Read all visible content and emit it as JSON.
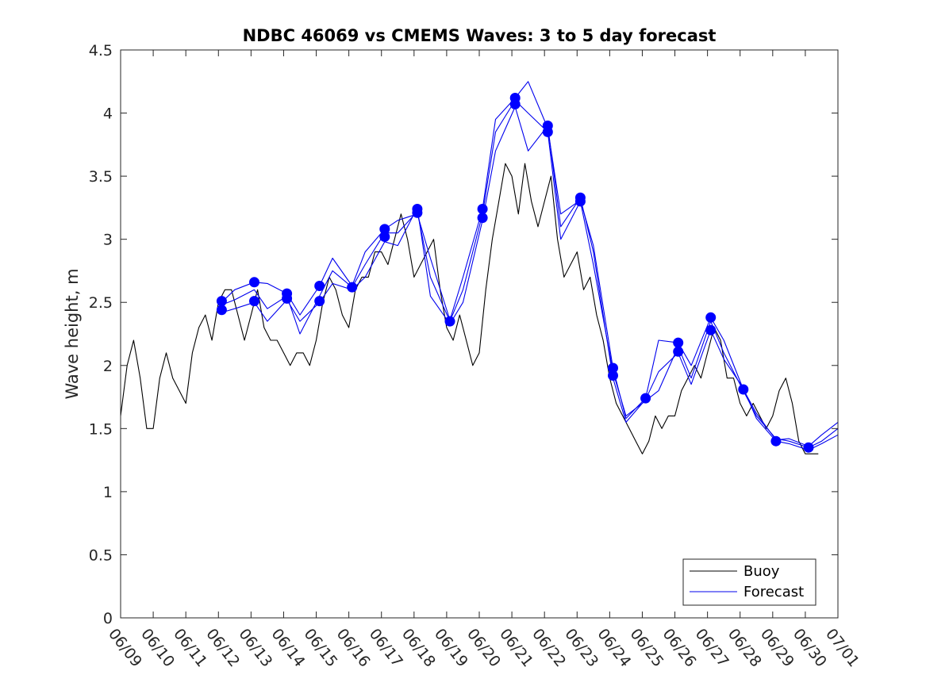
{
  "chart_data": {
    "type": "line",
    "title": "NDBC 46069 vs CMEMS Waves: 3 to 5 day forecast",
    "xlabel": "",
    "ylabel": "Wave height, m",
    "ylim": [
      0,
      4.5
    ],
    "yticks": [
      "0",
      "0.5",
      "1",
      "1.5",
      "2",
      "2.5",
      "3",
      "3.5",
      "4",
      "4.5"
    ],
    "xlim_days": [
      9,
      31
    ],
    "xticks": [
      "06/09",
      "06/10",
      "06/11",
      "06/12",
      "06/13",
      "06/14",
      "06/15",
      "06/16",
      "06/17",
      "06/18",
      "06/19",
      "06/20",
      "06/21",
      "06/22",
      "06/23",
      "06/24",
      "06/25",
      "06/26",
      "06/27",
      "06/28",
      "06/29",
      "06/30",
      "07/01"
    ],
    "grid": false,
    "legend_position": "bottom-right",
    "colors": {
      "buoy": "#000000",
      "forecast": "#0000ee",
      "markers": "#0000ff"
    },
    "series": [
      {
        "name": "Buoy",
        "x": [
          9.0,
          9.2,
          9.4,
          9.6,
          9.8,
          10.0,
          10.2,
          10.4,
          10.6,
          10.8,
          11.0,
          11.2,
          11.4,
          11.6,
          11.8,
          12.0,
          12.2,
          12.4,
          12.6,
          12.8,
          13.0,
          13.2,
          13.4,
          13.6,
          13.8,
          14.0,
          14.2,
          14.4,
          14.6,
          14.8,
          15.0,
          15.2,
          15.4,
          15.6,
          15.8,
          16.0,
          16.2,
          16.4,
          16.6,
          16.8,
          17.0,
          17.2,
          17.4,
          17.6,
          17.8,
          18.0,
          18.2,
          18.4,
          18.6,
          18.8,
          19.0,
          19.2,
          19.4,
          19.6,
          19.8,
          20.0,
          20.2,
          20.4,
          20.6,
          20.8,
          21.0,
          21.2,
          21.4,
          21.6,
          21.8,
          22.0,
          22.2,
          22.4,
          22.6,
          22.8,
          23.0,
          23.2,
          23.4,
          23.6,
          23.8,
          24.0,
          24.2,
          24.4,
          24.6,
          24.8,
          25.0,
          25.2,
          25.4,
          25.6,
          25.8,
          26.0,
          26.2,
          26.4,
          26.6,
          26.8,
          27.0,
          27.2,
          27.4,
          27.6,
          27.8,
          28.0,
          28.2,
          28.4,
          28.6,
          28.8,
          29.0,
          29.2,
          29.4,
          29.6,
          29.8,
          30.0,
          30.2,
          30.4
        ],
        "y": [
          1.6,
          2.0,
          2.2,
          1.9,
          1.5,
          1.5,
          1.9,
          2.1,
          1.9,
          1.8,
          1.7,
          2.1,
          2.3,
          2.4,
          2.2,
          2.5,
          2.6,
          2.6,
          2.4,
          2.2,
          2.4,
          2.6,
          2.3,
          2.2,
          2.2,
          2.1,
          2.0,
          2.1,
          2.1,
          2.0,
          2.2,
          2.5,
          2.7,
          2.6,
          2.4,
          2.3,
          2.6,
          2.7,
          2.7,
          2.9,
          2.9,
          2.8,
          3.0,
          3.2,
          3.0,
          2.7,
          2.8,
          2.9,
          3.0,
          2.6,
          2.3,
          2.2,
          2.4,
          2.2,
          2.0,
          2.1,
          2.6,
          3.0,
          3.3,
          3.6,
          3.5,
          3.2,
          3.6,
          3.3,
          3.1,
          3.3,
          3.5,
          3.0,
          2.7,
          2.8,
          2.9,
          2.6,
          2.7,
          2.4,
          2.2,
          1.9,
          1.7,
          1.6,
          1.5,
          1.4,
          1.3,
          1.4,
          1.6,
          1.5,
          1.6,
          1.6,
          1.8,
          1.9,
          2.0,
          1.9,
          2.1,
          2.3,
          2.2,
          1.9,
          1.9,
          1.7,
          1.6,
          1.7,
          1.6,
          1.5,
          1.6,
          1.8,
          1.9,
          1.7,
          1.4,
          1.3,
          1.3,
          1.3
        ]
      },
      {
        "name": "Forecast",
        "x": [
          12.1,
          12.5,
          13.1,
          13.5,
          14.1,
          14.5,
          15.1,
          15.5,
          16.1,
          16.5,
          17.1,
          17.5,
          18.1,
          18.5,
          19.1,
          19.5,
          20.1,
          20.5,
          21.1,
          21.5,
          22.1,
          22.5,
          23.1,
          23.5,
          24.1,
          24.5,
          25.1,
          25.5,
          26.1,
          26.5,
          27.1,
          27.5,
          28.1,
          28.5,
          29.1,
          29.5,
          30.1,
          30.5,
          31.0
        ],
        "y": [
          2.48,
          2.52,
          2.6,
          2.45,
          2.55,
          2.25,
          2.55,
          2.75,
          2.62,
          2.8,
          3.05,
          3.05,
          3.22,
          2.7,
          2.35,
          2.6,
          3.2,
          3.85,
          4.1,
          4.0,
          3.85,
          3.0,
          3.3,
          2.8,
          1.95,
          1.6,
          1.72,
          1.8,
          2.15,
          1.9,
          2.35,
          2.1,
          1.8,
          1.6,
          1.42,
          1.4,
          1.35,
          1.4,
          1.5
        ]
      },
      {
        "name": "",
        "x": [
          12.1,
          12.5,
          13.1,
          13.5,
          14.1,
          14.5,
          15.1,
          15.5,
          16.1,
          16.5,
          17.1,
          17.5,
          18.1,
          18.5,
          19.1,
          19.5,
          20.1,
          20.5,
          21.1,
          21.5,
          22.1,
          22.5,
          23.1,
          23.5,
          24.1,
          24.5,
          25.1,
          25.5,
          26.1,
          26.5,
          27.1,
          27.5,
          28.1,
          28.5,
          29.1,
          29.5,
          30.1,
          30.5,
          31.0
        ],
        "y": [
          2.42,
          2.45,
          2.5,
          2.35,
          2.52,
          2.35,
          2.5,
          2.65,
          2.6,
          2.7,
          2.98,
          2.95,
          3.25,
          2.55,
          2.33,
          2.5,
          3.15,
          3.7,
          4.05,
          3.7,
          3.9,
          3.1,
          3.33,
          2.9,
          1.9,
          1.55,
          1.73,
          1.95,
          2.1,
          1.85,
          2.28,
          2.05,
          1.82,
          1.58,
          1.4,
          1.38,
          1.33,
          1.38,
          1.45
        ]
      },
      {
        "name": "",
        "x": [
          12.1,
          12.5,
          13.1,
          13.5,
          14.1,
          14.5,
          15.1,
          15.5,
          16.1,
          16.5,
          17.1,
          17.5,
          18.1,
          18.5,
          19.1,
          19.5,
          20.1,
          20.5,
          21.1,
          21.5,
          22.1,
          22.5,
          23.1,
          23.5,
          24.1,
          24.5,
          25.1,
          25.5,
          26.1,
          26.5,
          27.1,
          27.5,
          28.1,
          28.5,
          29.1,
          29.5,
          30.1,
          30.5,
          31.0
        ],
        "y": [
          2.5,
          2.6,
          2.66,
          2.65,
          2.57,
          2.4,
          2.63,
          2.85,
          2.63,
          2.9,
          3.08,
          3.15,
          3.2,
          2.85,
          2.36,
          2.7,
          3.24,
          3.95,
          4.12,
          4.25,
          3.88,
          3.2,
          3.31,
          2.95,
          1.98,
          1.58,
          1.74,
          2.2,
          2.18,
          2.0,
          2.38,
          2.2,
          1.81,
          1.62,
          1.41,
          1.42,
          1.36,
          1.45,
          1.55
        ]
      }
    ],
    "markers": {
      "x": [
        12.1,
        12.1,
        13.1,
        13.1,
        14.1,
        14.1,
        15.1,
        15.1,
        16.1,
        17.1,
        17.1,
        18.1,
        18.1,
        19.1,
        20.1,
        20.1,
        21.1,
        21.1,
        22.1,
        22.1,
        23.1,
        23.1,
        24.1,
        24.1,
        25.1,
        26.1,
        26.1,
        27.1,
        27.1,
        28.1,
        29.1,
        30.1
      ],
      "y": [
        2.51,
        2.44,
        2.66,
        2.51,
        2.57,
        2.53,
        2.63,
        2.51,
        2.62,
        3.08,
        3.02,
        3.24,
        3.21,
        2.35,
        3.24,
        3.17,
        4.12,
        4.07,
        3.9,
        3.85,
        3.33,
        3.3,
        1.98,
        1.92,
        1.74,
        2.18,
        2.11,
        2.38,
        2.28,
        1.81,
        1.4,
        1.35
      ]
    }
  }
}
